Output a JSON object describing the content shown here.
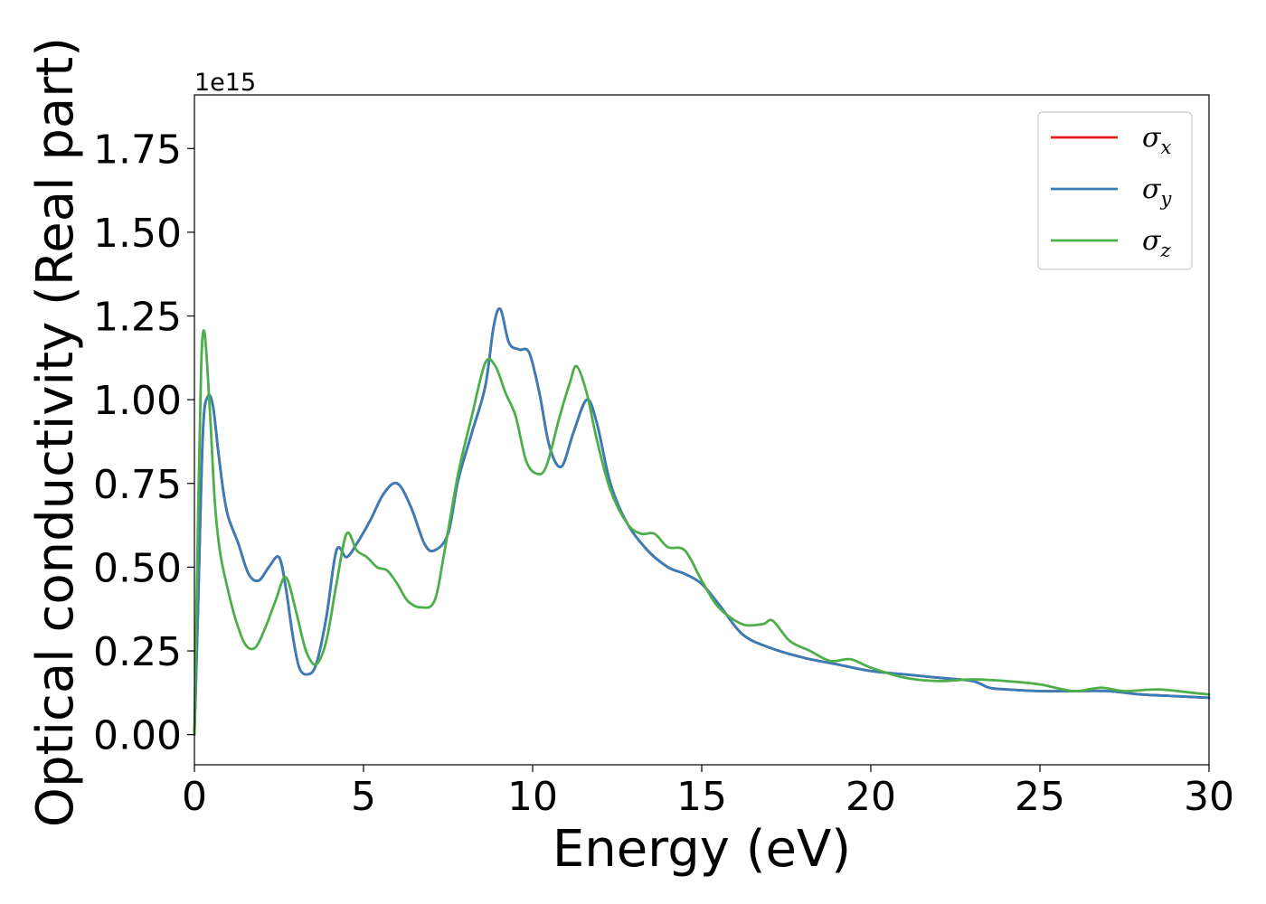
{
  "chart_data": {
    "type": "line",
    "title": "",
    "xlabel": "Energy (eV)",
    "ylabel": "Optical conductivity (Real part)",
    "y_offset_text": "1e15",
    "xlim": [
      0,
      30
    ],
    "ylim": [
      -0.09,
      1.91
    ],
    "xticks": [
      0,
      5,
      10,
      15,
      20,
      25,
      30
    ],
    "xtick_labels": [
      "0",
      "5",
      "10",
      "15",
      "20",
      "25",
      "30"
    ],
    "yticks": [
      0.0,
      0.25,
      0.5,
      0.75,
      1.0,
      1.25,
      1.5,
      1.75
    ],
    "ytick_labels": [
      "0.00",
      "0.25",
      "0.50",
      "0.75",
      "1.00",
      "1.25",
      "1.50",
      "1.75"
    ],
    "grid": false,
    "legend_position": "top-right",
    "series": [
      {
        "name": "σx",
        "legend_symbol": "σ",
        "legend_subscript": "x",
        "color": "#e41a1c",
        "x": [
          0,
          0.1,
          0.25,
          0.4,
          0.55,
          0.7,
          0.85,
          1.0,
          1.3,
          1.6,
          1.9,
          2.2,
          2.5,
          2.7,
          2.9,
          3.1,
          3.35,
          3.6,
          3.9,
          4.2,
          4.5,
          4.8,
          5.2,
          5.6,
          6.0,
          6.4,
          6.8,
          7.1,
          7.5,
          7.8,
          8.2,
          8.6,
          8.85,
          9.05,
          9.3,
          9.6,
          9.9,
          10.2,
          10.5,
          10.85,
          11.2,
          11.6,
          11.9,
          12.3,
          12.8,
          13.4,
          14.0,
          14.5,
          15.0,
          15.5,
          16.2,
          17.0,
          18.0,
          19.0,
          20.0,
          21.0,
          22.0,
          23.0,
          23.5,
          24.0,
          25.0,
          26.0,
          27.0,
          28.0,
          29.0,
          30.0
        ],
        "y": [
          0.0,
          0.35,
          0.9,
          1.01,
          0.98,
          0.85,
          0.73,
          0.65,
          0.57,
          0.48,
          0.46,
          0.5,
          0.53,
          0.44,
          0.3,
          0.2,
          0.18,
          0.21,
          0.35,
          0.55,
          0.53,
          0.57,
          0.64,
          0.72,
          0.75,
          0.68,
          0.57,
          0.55,
          0.6,
          0.76,
          0.9,
          1.04,
          1.22,
          1.27,
          1.17,
          1.15,
          1.14,
          1.02,
          0.86,
          0.8,
          0.9,
          1.0,
          0.93,
          0.75,
          0.63,
          0.55,
          0.5,
          0.48,
          0.45,
          0.39,
          0.3,
          0.26,
          0.23,
          0.21,
          0.19,
          0.18,
          0.17,
          0.16,
          0.14,
          0.135,
          0.13,
          0.13,
          0.13,
          0.12,
          0.115,
          0.11
        ]
      },
      {
        "name": "σy",
        "legend_symbol": "σ",
        "legend_subscript": "y",
        "color": "#377eb8",
        "x": [
          0,
          0.1,
          0.25,
          0.4,
          0.55,
          0.7,
          0.85,
          1.0,
          1.3,
          1.6,
          1.9,
          2.2,
          2.5,
          2.7,
          2.9,
          3.1,
          3.35,
          3.6,
          3.9,
          4.2,
          4.5,
          4.8,
          5.2,
          5.6,
          6.0,
          6.4,
          6.8,
          7.1,
          7.5,
          7.8,
          8.2,
          8.6,
          8.85,
          9.05,
          9.3,
          9.6,
          9.9,
          10.2,
          10.5,
          10.85,
          11.2,
          11.6,
          11.9,
          12.3,
          12.8,
          13.4,
          14.0,
          14.5,
          15.0,
          15.5,
          16.2,
          17.0,
          18.0,
          19.0,
          20.0,
          21.0,
          22.0,
          23.0,
          23.5,
          24.0,
          25.0,
          26.0,
          27.0,
          28.0,
          29.0,
          30.0
        ],
        "y": [
          0.0,
          0.35,
          0.9,
          1.01,
          0.98,
          0.85,
          0.73,
          0.65,
          0.57,
          0.48,
          0.46,
          0.5,
          0.53,
          0.44,
          0.3,
          0.2,
          0.18,
          0.21,
          0.35,
          0.55,
          0.53,
          0.57,
          0.64,
          0.72,
          0.75,
          0.68,
          0.57,
          0.55,
          0.6,
          0.76,
          0.9,
          1.04,
          1.22,
          1.27,
          1.17,
          1.15,
          1.14,
          1.02,
          0.86,
          0.8,
          0.9,
          1.0,
          0.93,
          0.75,
          0.63,
          0.55,
          0.5,
          0.48,
          0.45,
          0.39,
          0.3,
          0.26,
          0.23,
          0.21,
          0.19,
          0.18,
          0.17,
          0.16,
          0.14,
          0.135,
          0.13,
          0.13,
          0.13,
          0.12,
          0.115,
          0.11
        ]
      },
      {
        "name": "σz",
        "legend_symbol": "σ",
        "legend_subscript": "z",
        "color": "#4daf4a",
        "x": [
          0,
          0.1,
          0.2,
          0.3,
          0.45,
          0.6,
          0.75,
          0.95,
          1.2,
          1.5,
          1.8,
          2.1,
          2.4,
          2.7,
          3.0,
          3.3,
          3.6,
          3.9,
          4.2,
          4.5,
          4.8,
          5.1,
          5.4,
          5.7,
          6.0,
          6.3,
          6.7,
          7.1,
          7.4,
          7.8,
          8.2,
          8.6,
          8.9,
          9.2,
          9.5,
          9.8,
          10.1,
          10.4,
          10.8,
          11.1,
          11.3,
          11.6,
          11.9,
          12.3,
          12.8,
          13.2,
          13.6,
          14.0,
          14.5,
          15.0,
          15.5,
          16.2,
          16.8,
          17.1,
          17.6,
          18.2,
          18.8,
          19.4,
          20.0,
          21.0,
          22.0,
          23.0,
          24.0,
          25.0,
          26.0,
          26.8,
          27.5,
          28.5,
          29.5,
          30.0
        ],
        "y": [
          0.0,
          0.6,
          1.1,
          1.2,
          0.98,
          0.7,
          0.55,
          0.45,
          0.35,
          0.27,
          0.26,
          0.32,
          0.4,
          0.47,
          0.37,
          0.25,
          0.21,
          0.28,
          0.45,
          0.6,
          0.55,
          0.53,
          0.5,
          0.49,
          0.45,
          0.4,
          0.38,
          0.4,
          0.55,
          0.78,
          0.95,
          1.11,
          1.1,
          1.02,
          0.95,
          0.82,
          0.78,
          0.8,
          0.95,
          1.05,
          1.1,
          1.02,
          0.88,
          0.73,
          0.63,
          0.6,
          0.6,
          0.56,
          0.55,
          0.46,
          0.38,
          0.33,
          0.33,
          0.34,
          0.28,
          0.25,
          0.22,
          0.225,
          0.2,
          0.17,
          0.16,
          0.165,
          0.16,
          0.15,
          0.13,
          0.14,
          0.13,
          0.135,
          0.125,
          0.12
        ]
      }
    ]
  }
}
